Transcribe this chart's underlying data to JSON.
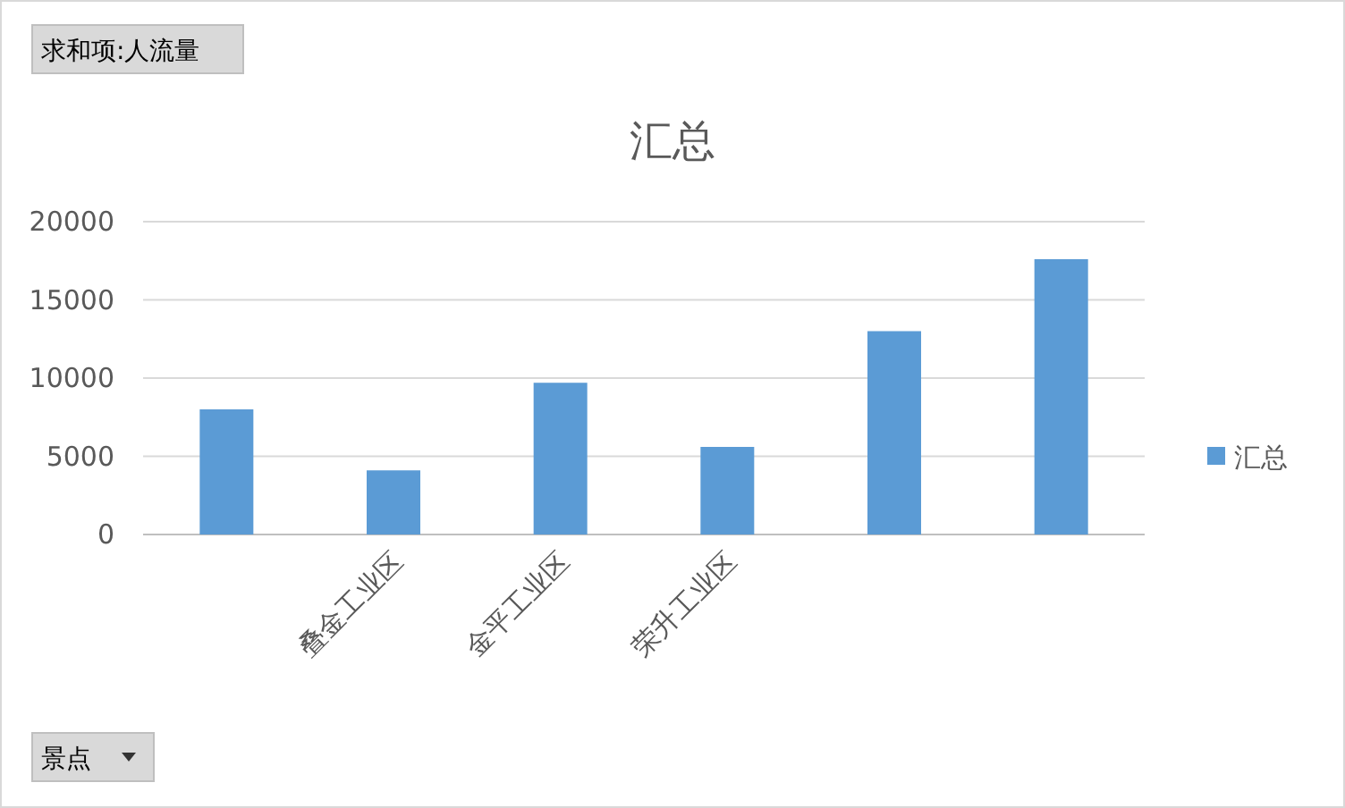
{
  "chart_data": {
    "type": "bar",
    "title": "汇总",
    "categories": [
      null,
      "叠金工业区",
      "金平工业区",
      "荣升工业区",
      null,
      null
    ],
    "series": [
      {
        "name": "汇总",
        "color": "#5b9bd5",
        "values": [
          8000,
          4100,
          9700,
          5600,
          13000,
          17600
        ]
      }
    ],
    "ylim": [
      0,
      20000
    ],
    "yticks": [
      0,
      5000,
      10000,
      15000,
      20000
    ],
    "grid": "y",
    "legend": "right",
    "annotations": [
      "求和项:人流量",
      "景点"
    ]
  }
}
